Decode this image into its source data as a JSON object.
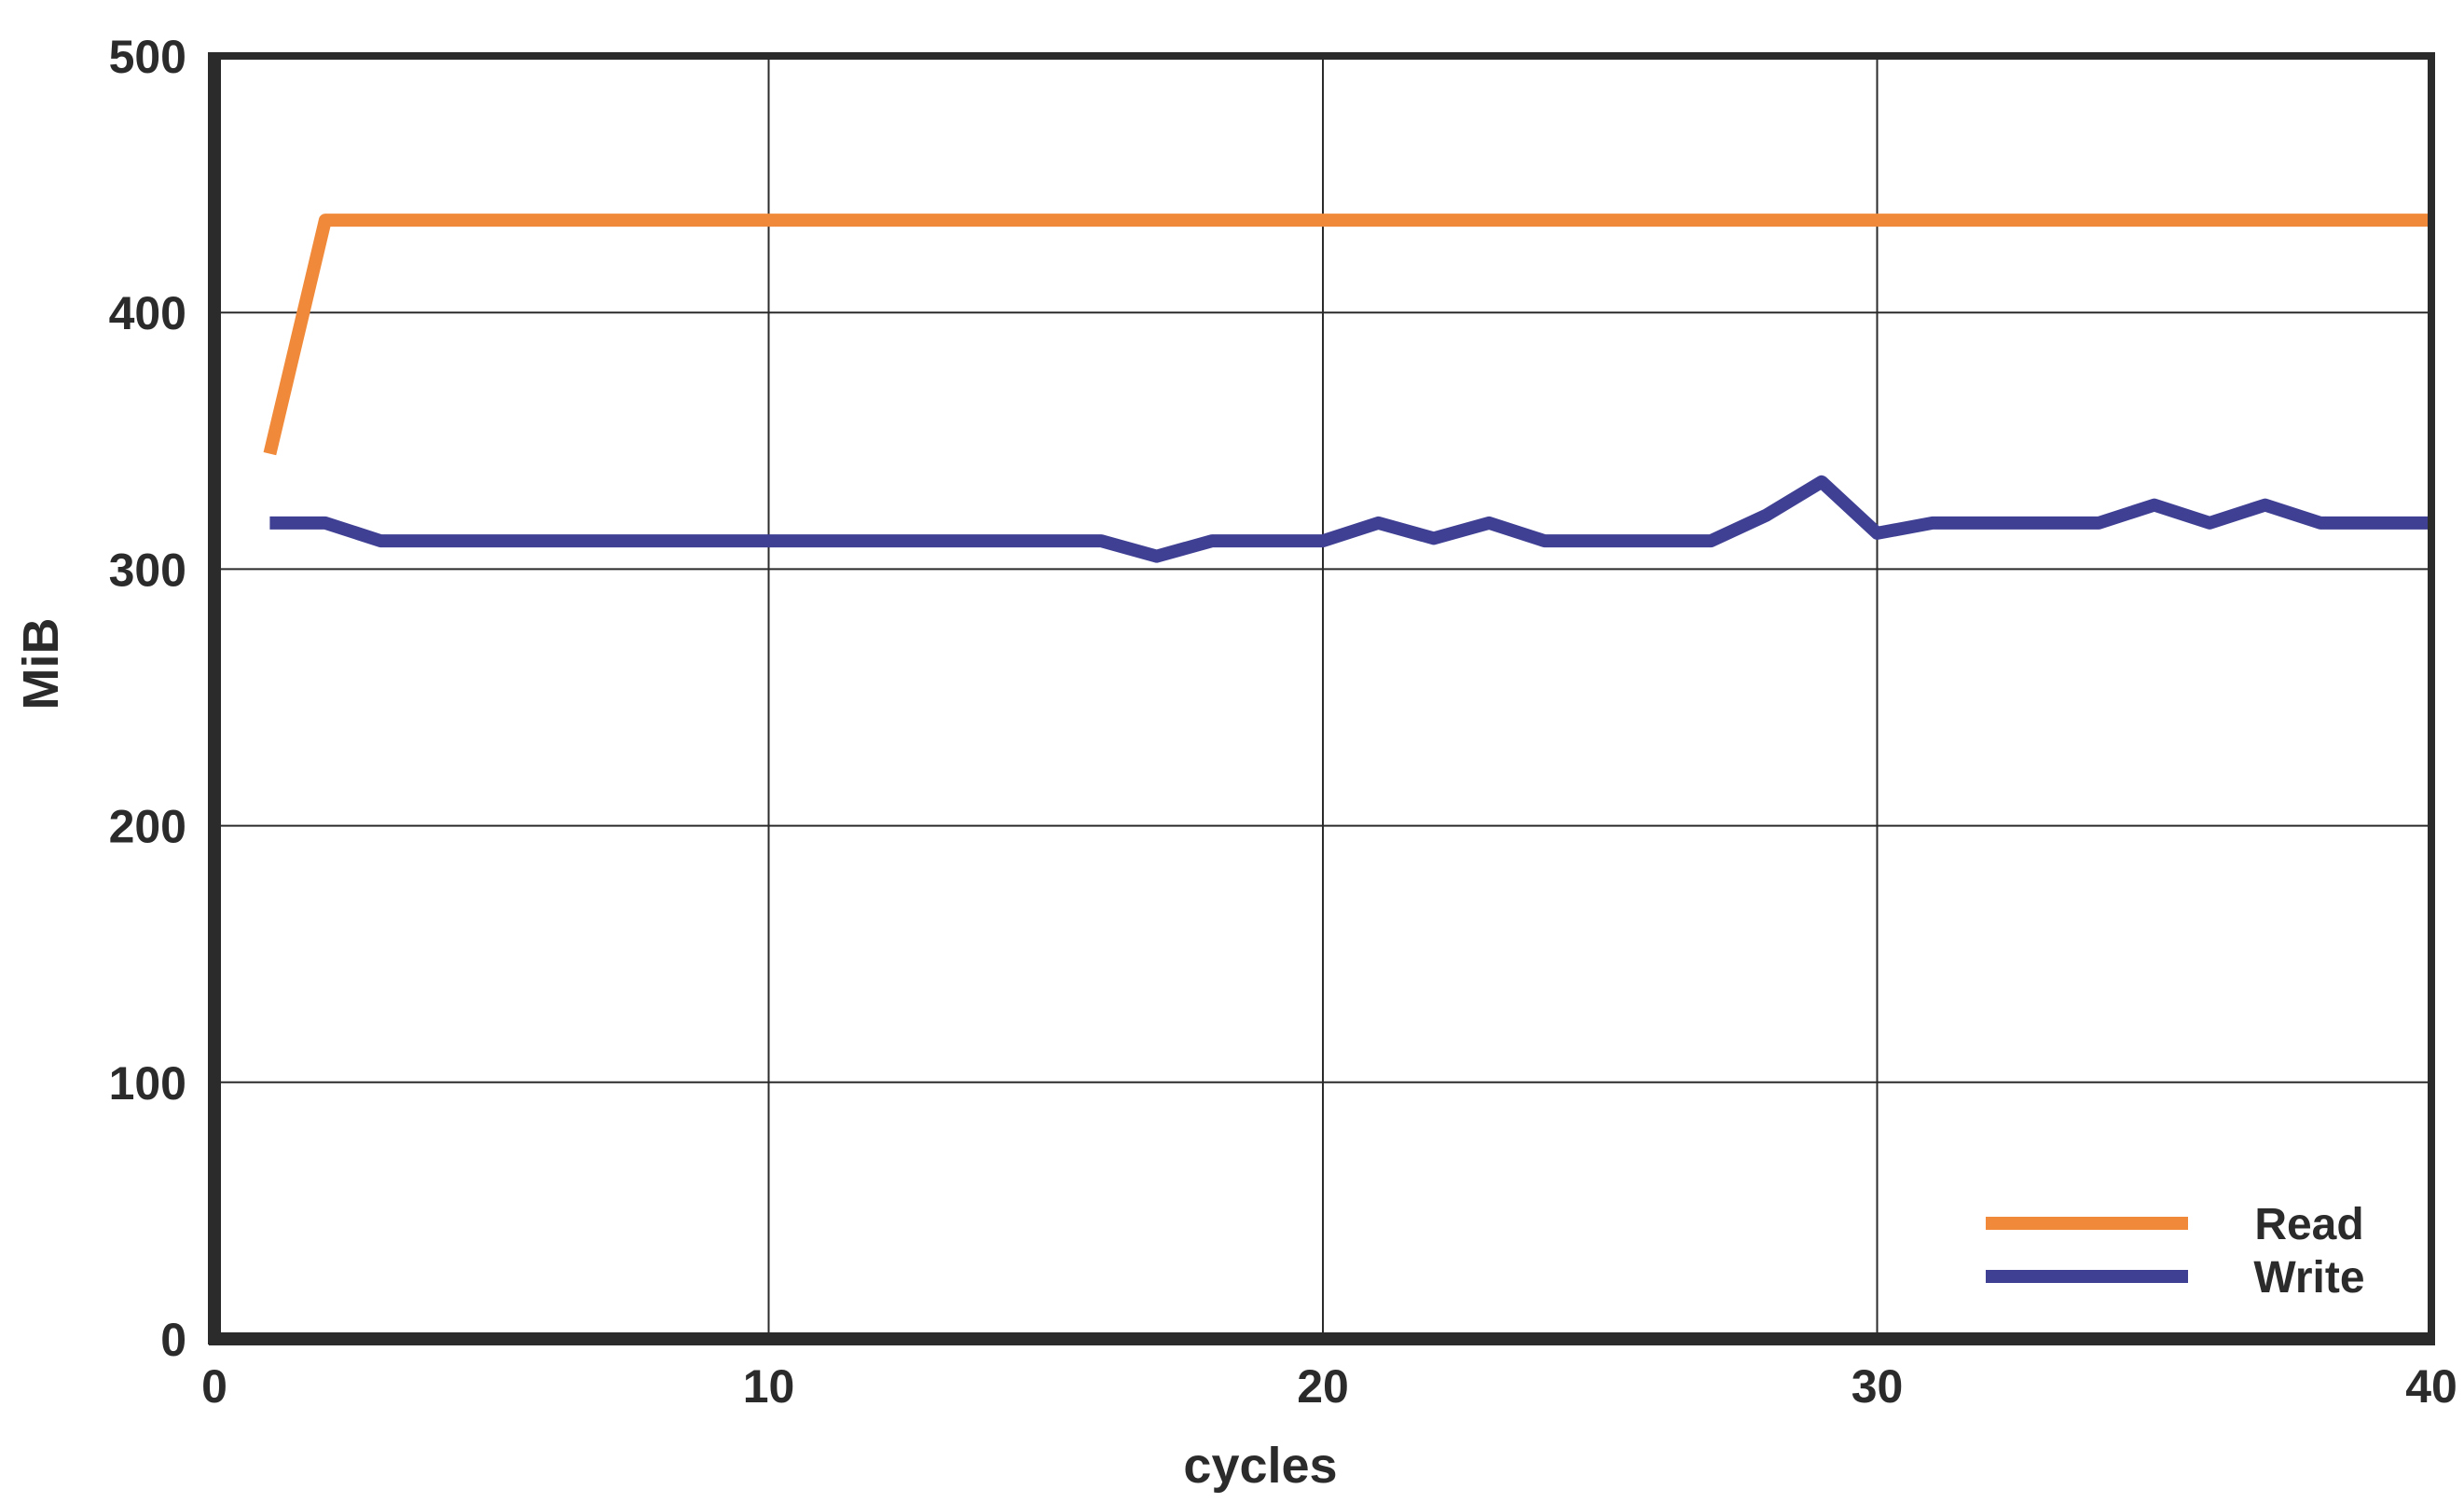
{
  "chart_data": {
    "type": "line",
    "title": "",
    "xlabel": "cycles",
    "ylabel": "MiB",
    "xlim": [
      0,
      40
    ],
    "ylim": [
      0,
      500
    ],
    "x_ticks": [
      0,
      10,
      20,
      30,
      40
    ],
    "y_ticks": [
      0,
      100,
      200,
      300,
      400,
      500
    ],
    "grid": true,
    "legend_position": "bottom-right",
    "series": [
      {
        "name": "Read",
        "color": "#f08a3a",
        "x": [
          1,
          2,
          3,
          4,
          5,
          6,
          7,
          8,
          9,
          10,
          11,
          12,
          13,
          14,
          15,
          16,
          17,
          18,
          19,
          20,
          21,
          22,
          23,
          24,
          25,
          26,
          27,
          28,
          29,
          30,
          31,
          32,
          33,
          34,
          35,
          36,
          37,
          38,
          39,
          40
        ],
        "values": [
          345,
          436,
          436,
          436,
          436,
          436,
          436,
          436,
          436,
          436,
          436,
          436,
          436,
          436,
          436,
          436,
          436,
          436,
          436,
          436,
          436,
          436,
          436,
          436,
          436,
          436,
          436,
          436,
          436,
          436,
          436,
          436,
          436,
          436,
          436,
          436,
          436,
          436,
          436,
          436
        ]
      },
      {
        "name": "Write",
        "color": "#3f3f94",
        "x": [
          1,
          2,
          3,
          4,
          5,
          6,
          7,
          8,
          9,
          10,
          11,
          12,
          13,
          14,
          15,
          16,
          17,
          18,
          19,
          20,
          21,
          22,
          23,
          24,
          25,
          26,
          27,
          28,
          29,
          30,
          31,
          32,
          33,
          34,
          35,
          36,
          37,
          38,
          39,
          40
        ],
        "values": [
          318,
          318,
          311,
          311,
          311,
          311,
          311,
          311,
          311,
          311,
          311,
          311,
          311,
          311,
          311,
          311,
          305,
          311,
          311,
          311,
          318,
          312,
          318,
          311,
          311,
          311,
          311,
          321,
          334,
          314,
          318,
          318,
          318,
          318,
          325,
          318,
          325,
          318,
          318,
          318
        ]
      }
    ]
  }
}
